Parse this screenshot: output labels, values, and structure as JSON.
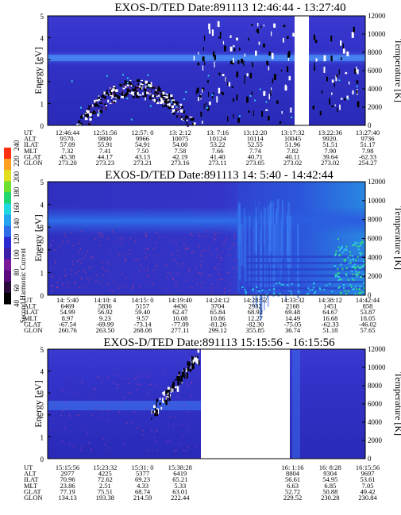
{
  "colors": {
    "background_blue": "#3333cc",
    "band_blue": "#3a6cf0",
    "deep_blue": "#1e1eaa",
    "dark_spot": "#000000",
    "white_spot": "#ffffff",
    "cyan": "#33ccee",
    "green": "#33dd77"
  },
  "colorbar": {
    "label": "Second Harmonic Current",
    "ticks": [
      "40",
      "60",
      "80",
      "100",
      "120",
      "140",
      "160",
      "180",
      "200",
      "220",
      "240"
    ],
    "colors": [
      "#000000",
      "#2a0a3a",
      "#5a0a7a",
      "#7a1a9a",
      "#3b1fa8",
      "#2a2ad0",
      "#2e6fe8",
      "#23a5f0",
      "#21d8e0",
      "#1fd670",
      "#6fe030",
      "#e0e020",
      "#ffa020",
      "#ff3010"
    ]
  },
  "chart_data": [
    {
      "type": "heatmap",
      "title": "EXOS-D/TED   Date:891113   12:46:44 - 13:27:40",
      "ylabel": "Energy [eV]",
      "y2label": "Temperature [K]",
      "ylim": [
        0,
        5
      ],
      "y2lim": [
        0,
        12000
      ],
      "yticks": [
        "0",
        "1",
        "2",
        "3",
        "4",
        "5"
      ],
      "y2ticks": [
        "0",
        "2000",
        "4000",
        "6000",
        "8000",
        "10000",
        "12000"
      ],
      "data_gap": true,
      "table": {
        "row_labels": [
          "UT",
          "ALT",
          "ILAT",
          "MLT",
          "GLAT",
          "GLON"
        ],
        "columns": [
          [
            "12:46:44",
            "9570.",
            "57.09",
            "7.32",
            "45.38",
            "273.20"
          ],
          [
            "12:51:56",
            "9800",
            "55.91",
            "7.41",
            "44.17",
            "273.23"
          ],
          [
            "12:57: 0",
            "9966",
            "54.91",
            "7.50",
            "43.13",
            "273.21"
          ],
          [
            "13: 2:12",
            "10075",
            "54.00",
            "7.58",
            "42.19",
            "273.16"
          ],
          [
            "13: 7:16",
            "10124",
            "53.22",
            "7.66",
            "41.40",
            "273.11"
          ],
          [
            "13:12:20",
            "10114",
            "52.55",
            "7.74",
            "40.71",
            "273.05"
          ],
          [
            "13:17:32",
            "10045",
            "51.96",
            "7.82",
            "40.11",
            "273.02"
          ],
          [
            "13:22:36",
            "9920.",
            "51.51",
            "7.90",
            "39.64",
            "273.02"
          ],
          [
            "13:27:40",
            "9736",
            "51.17",
            "7.98",
            "-62.33",
            "254.27"
          ]
        ]
      }
    },
    {
      "type": "heatmap",
      "title": "EXOS-D/TED   Date:891113   14: 5:40 - 14:42:44",
      "ylabel": "Energy [eV]",
      "y2label": "Temperature [K]",
      "ylim": [
        0,
        5
      ],
      "y2lim": [
        0,
        12000
      ],
      "yticks": [
        "0",
        "1",
        "2",
        "3",
        "4",
        "5"
      ],
      "y2ticks": [
        "0",
        "2000",
        "4000",
        "6000",
        "8000",
        "10000",
        "12000"
      ],
      "table": {
        "row_labels": [
          "UT",
          "ALT",
          "ILAT",
          "MLT",
          "GLAT",
          "GLON"
        ],
        "columns": [
          [
            "14: 5:40",
            "6469",
            "54.99",
            "8.97",
            "-67.54",
            "260.76"
          ],
          [
            "14:10: 4",
            "5836",
            "56.92",
            "9.23",
            "-69.99",
            "263.50"
          ],
          [
            "14:15: 0",
            "5157",
            "59.40",
            "9.57",
            "-73.14",
            "268.08"
          ],
          [
            "14:19:40",
            "4436",
            "62.47",
            "10.08",
            "-77.09",
            "277.11"
          ],
          [
            "14:24:12",
            "3704",
            "65.84",
            "10.86",
            "-81.26",
            "299.12"
          ],
          [
            "14:28:52",
            "2932",
            "68.92",
            "12.27",
            "-82.30",
            "355.85"
          ],
          [
            "14:33:32",
            "2168",
            "69.48",
            "14.49",
            "-75.05",
            "36.74"
          ],
          [
            "14:38:12",
            "1451",
            "64.67",
            "16.68",
            "-62.33",
            "51.18"
          ],
          [
            "14:42:44",
            "858",
            "53.87",
            "18.05",
            "-46.02",
            "57.65"
          ]
        ]
      }
    },
    {
      "type": "heatmap",
      "title": "EXOS-D/TED   Date:891113   15:15:56 - 16:15:56",
      "ylabel": "Energy [eV]",
      "y2label": "Temperature [K]",
      "ylim": [
        0,
        5
      ],
      "y2lim": [
        0,
        12000
      ],
      "yticks": [
        "0",
        "1",
        "2",
        "3",
        "4",
        "5"
      ],
      "y2ticks": [
        "0",
        "2000",
        "4000",
        "6000",
        "8000",
        "10000",
        "12000"
      ],
      "data_gap": true,
      "table": {
        "row_labels": [
          "UT",
          "ALT",
          "ILAT",
          "MLT",
          "GLAT",
          "GLON"
        ],
        "columns": [
          [
            "15:15:56",
            "2977",
            "70.96",
            "23.86",
            "77.19",
            "134.13"
          ],
          [
            "15:23:32",
            "4225",
            "72.62",
            "2.51",
            "75.51",
            "193.38"
          ],
          [
            "15:31: 0",
            "5377",
            "69.23",
            "4.33",
            "68.74",
            "214.59"
          ],
          [
            "15:38:28",
            "6419",
            "65.21",
            "5.33",
            "63.01",
            "222.44"
          ],
          [
            "",
            "",
            "",
            "",
            "",
            ""
          ],
          [
            "",
            "",
            "",
            "",
            "",
            ""
          ],
          [
            "16: 1:16",
            "8804",
            "56.61",
            "6.63",
            "52.72",
            "229.52"
          ],
          [
            "16: 8:28",
            "9304",
            "54.95",
            "6.85",
            "50.88",
            "230.28"
          ],
          [
            "16:15:56",
            "9697",
            "53.61",
            "7.05",
            "49.42",
            "230.84"
          ]
        ]
      }
    }
  ]
}
